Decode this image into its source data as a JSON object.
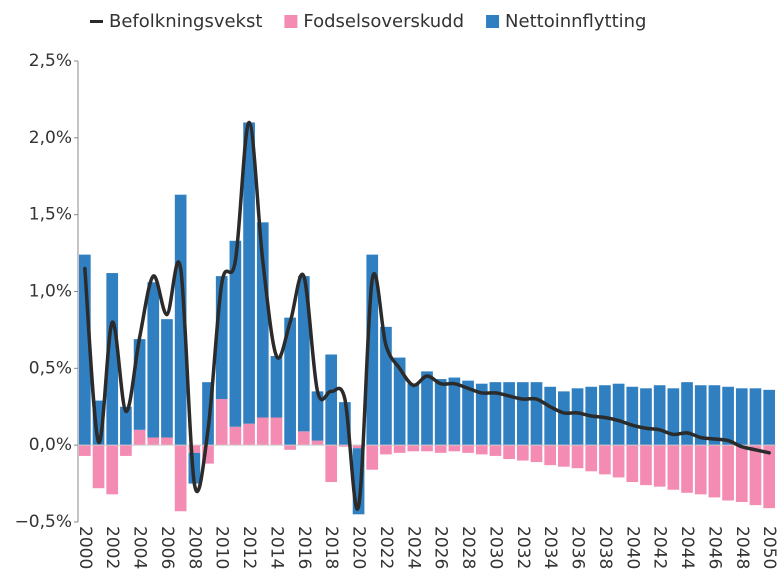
{
  "chart_data": {
    "type": "bar",
    "categories": [
      "2000",
      null,
      "2002",
      null,
      "2004",
      null,
      "2006",
      null,
      "2008",
      null,
      "2010",
      null,
      "2012",
      null,
      "2014",
      null,
      "2016",
      null,
      "2018",
      null,
      "2020",
      null,
      "2022",
      null,
      "2024",
      null,
      "2026",
      null,
      "2028",
      null,
      "2030",
      null,
      "2032",
      null,
      "2034",
      null,
      "2036",
      null,
      "2038",
      null,
      "2040",
      null,
      "2042",
      null,
      "2044",
      null,
      "2046",
      null,
      "2048",
      null,
      "2050"
    ],
    "series": [
      {
        "name": "Befolkningsvekst",
        "type": "line",
        "color": "#2b2b2b",
        "values": [
          1.15,
          0.02,
          0.8,
          0.22,
          0.7,
          1.1,
          0.85,
          1.15,
          -0.25,
          0.1,
          1.05,
          1.2,
          2.1,
          1.2,
          0.58,
          0.8,
          1.1,
          0.35,
          0.35,
          0.3,
          -0.4,
          1.08,
          0.65,
          0.5,
          0.39,
          0.45,
          0.4,
          0.4,
          0.37,
          0.34,
          0.34,
          0.32,
          0.3,
          0.3,
          0.25,
          0.21,
          0.21,
          0.19,
          0.18,
          0.16,
          0.13,
          0.11,
          0.1,
          0.07,
          0.08,
          0.05,
          0.04,
          0.03,
          -0.01,
          -0.03,
          -0.05
        ]
      },
      {
        "name": "Fodselsoverskudd",
        "type": "bar",
        "color": "#f48bb2",
        "values": [
          -0.07,
          -0.28,
          -0.32,
          -0.07,
          0.1,
          0.05,
          0.05,
          -0.43,
          -0.05,
          -0.12,
          0.3,
          0.12,
          0.14,
          0.18,
          0.18,
          -0.03,
          0.09,
          0.03,
          -0.24,
          -0.01,
          -0.02,
          -0.16,
          -0.06,
          -0.05,
          -0.04,
          -0.04,
          -0.05,
          -0.04,
          -0.05,
          -0.06,
          -0.07,
          -0.09,
          -0.1,
          -0.11,
          -0.13,
          -0.14,
          -0.15,
          -0.17,
          -0.19,
          -0.21,
          -0.24,
          -0.26,
          -0.27,
          -0.29,
          -0.31,
          -0.32,
          -0.34,
          -0.36,
          -0.37,
          -0.39,
          -0.41
        ]
      },
      {
        "name": "Nettoinnflytting",
        "type": "bar",
        "color": "#2f7fc1",
        "values": [
          1.24,
          0.29,
          1.12,
          0.25,
          0.59,
          1.01,
          0.77,
          1.63,
          -0.2,
          0.41,
          0.8,
          1.21,
          1.96,
          1.27,
          0.4,
          0.83,
          1.01,
          0.32,
          0.59,
          0.28,
          -0.43,
          1.24,
          0.77,
          0.57,
          0.4,
          0.48,
          0.43,
          0.44,
          0.42,
          0.4,
          0.41,
          0.41,
          0.41,
          0.41,
          0.38,
          0.35,
          0.37,
          0.38,
          0.39,
          0.4,
          0.38,
          0.37,
          0.39,
          0.37,
          0.41,
          0.39,
          0.39,
          0.38,
          0.37,
          0.37,
          0.36
        ]
      }
    ],
    "ylim": [
      -0.5,
      2.5
    ],
    "yticks": [
      {
        "value": -0.5,
        "label": "−0,5%"
      },
      {
        "value": 0,
        "label": "0,0%"
      },
      {
        "value": 0.5,
        "label": "0,5%"
      },
      {
        "value": 1,
        "label": "1,0%"
      },
      {
        "value": 1.5,
        "label": "1,5%"
      },
      {
        "value": 2,
        "label": "2,0%"
      },
      {
        "value": 2.5,
        "label": "2,5%"
      }
    ],
    "grid": false,
    "legend": "top"
  }
}
